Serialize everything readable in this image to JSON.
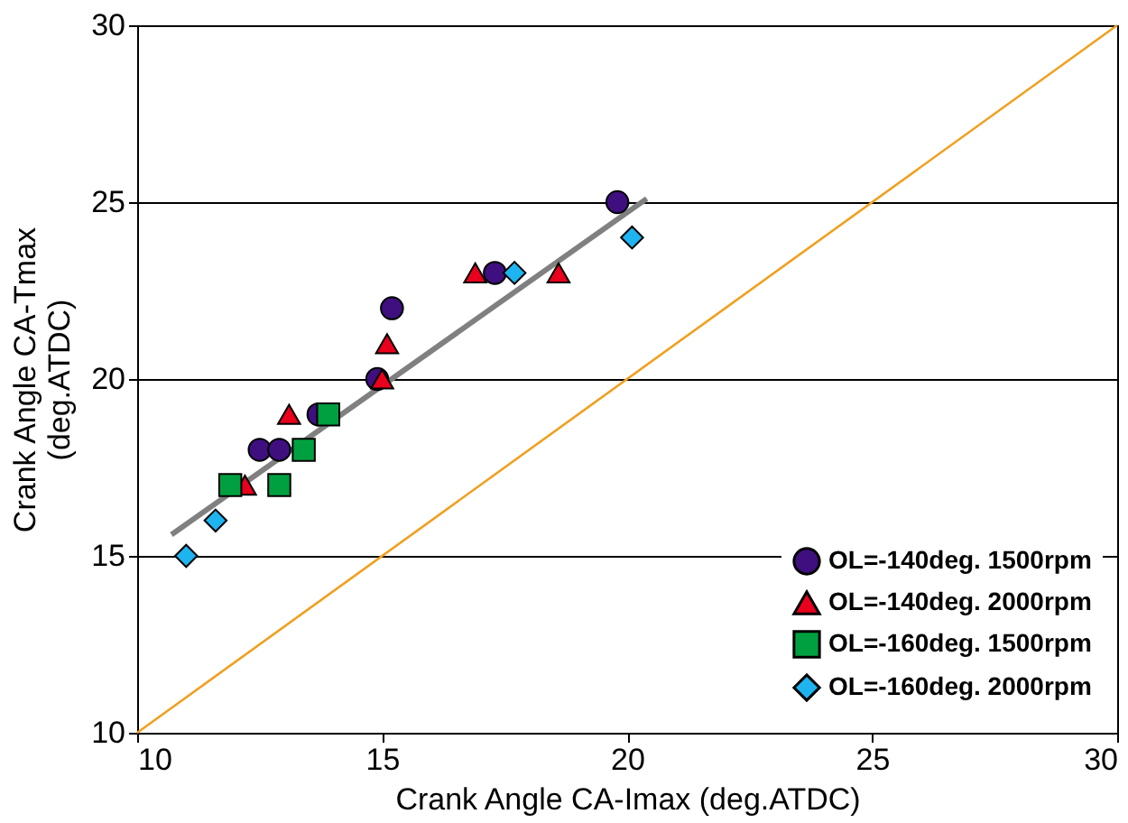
{
  "chart_data": {
    "type": "scatter",
    "xlabel": "Crank Angle  CA-Imax (deg.ATDC)",
    "ylabel": "Crank Angle  CA-Tmax\n(deg.ATDC)",
    "xlim": [
      10,
      30
    ],
    "ylim": [
      10,
      30
    ],
    "xticks": [
      10,
      15,
      20,
      25,
      30
    ],
    "yticks": [
      10,
      15,
      20,
      25,
      30
    ],
    "grid": "y",
    "legend": "bottom right",
    "series": [
      {
        "name": "OL=-140deg. 1500rpm",
        "color": "#3f0f7f",
        "marker": "circle",
        "x": [
          19.8,
          17.3,
          15.2,
          14.9,
          13.7,
          12.5,
          12.9
        ],
        "values": [
          25,
          23,
          22,
          20,
          19,
          18,
          18
        ]
      },
      {
        "name": "OL=-140deg. 2000rpm",
        "color": "#e8001c",
        "marker": "triangle",
        "x": [
          16.9,
          18.6,
          15.1,
          15.0,
          13.1,
          12.2
        ],
        "values": [
          23,
          23,
          21,
          20,
          19,
          17
        ]
      },
      {
        "name": "OL=-160deg. 1500rpm",
        "color": "#00a040",
        "marker": "square",
        "x": [
          13.9,
          13.4,
          12.9,
          11.9
        ],
        "values": [
          19,
          18,
          17,
          17
        ]
      },
      {
        "name": "OL=-160deg. 2000rpm",
        "color": "#1eb4f0",
        "marker": "diamond",
        "x": [
          11.0,
          11.6,
          17.7,
          20.1
        ],
        "values": [
          15,
          16,
          23,
          24
        ]
      },
      {
        "type": "line",
        "color": "#808080",
        "x": [
          10.7,
          20.4
        ],
        "values": [
          15.6,
          25.1
        ]
      },
      {
        "type": "line",
        "color": "#f0a020",
        "x": [
          10,
          30
        ],
        "values": [
          10,
          30
        ]
      }
    ]
  }
}
